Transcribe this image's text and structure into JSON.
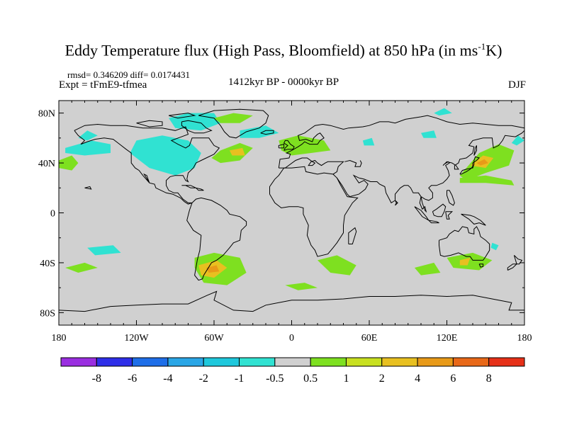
{
  "title_main": "Eddy Temperature flux (High Pass, Bloomfield) at 850 hPa (in ms",
  "title_sup": "-1",
  "title_end": "K)",
  "stats": "rmsd= 0.346209 diff= 0.0174431",
  "experiment": "Expt = tFmE9-tfmea",
  "period": "1412kyr BP - 0000kyr BP",
  "season": "DJF",
  "map": {
    "lat_labels": [
      "80N",
      "40N",
      "0",
      "40S",
      "80S"
    ],
    "lat_values": [
      80,
      40,
      0,
      -40,
      -80
    ],
    "lon_labels": [
      "180",
      "120W",
      "60W",
      "0",
      "60E",
      "120E",
      "180"
    ],
    "lon_values": [
      -180,
      -120,
      -60,
      0,
      60,
      120,
      180
    ],
    "lat_range": [
      -90,
      90
    ],
    "lon_range": [
      -180,
      180
    ],
    "ocean_color": "#d0d0d0",
    "coast_color": "#000000"
  },
  "colorbar": {
    "labels": [
      "-8",
      "-6",
      "-4",
      "-2",
      "-1",
      "-0.5",
      "0.5",
      "1",
      "2",
      "4",
      "6",
      "8"
    ],
    "colors": [
      "#9a2ee0",
      "#2e2ee8",
      "#1e6ee8",
      "#2aa6e6",
      "#1ec8dc",
      "#30e2d2",
      "#d0d0d0",
      "#7ee020",
      "#c8e020",
      "#e8c020",
      "#e89a18",
      "#e86818",
      "#e63018"
    ]
  },
  "anomalies": [
    {
      "color": "#30e2d2",
      "pts": [
        [
          -175,
          52
        ],
        [
          -155,
          58
        ],
        [
          -140,
          55
        ],
        [
          -140,
          48
        ],
        [
          -160,
          46
        ],
        [
          -175,
          48
        ]
      ]
    },
    {
      "color": "#30e2d2",
      "pts": [
        [
          -120,
          58
        ],
        [
          -100,
          62
        ],
        [
          -80,
          58
        ],
        [
          -70,
          48
        ],
        [
          -75,
          36
        ],
        [
          -90,
          30
        ],
        [
          -110,
          36
        ],
        [
          -125,
          48
        ]
      ]
    },
    {
      "color": "#30e2d2",
      "pts": [
        [
          -95,
          76
        ],
        [
          -80,
          80
        ],
        [
          -60,
          80
        ],
        [
          -55,
          72
        ],
        [
          -70,
          66
        ],
        [
          -90,
          68
        ]
      ]
    },
    {
      "color": "#30e2d2",
      "pts": [
        [
          -40,
          66
        ],
        [
          -20,
          70
        ],
        [
          -10,
          64
        ],
        [
          -25,
          60
        ],
        [
          -40,
          60
        ]
      ]
    },
    {
      "color": "#30e2d2",
      "pts": [
        [
          -158,
          -28
        ],
        [
          -138,
          -26
        ],
        [
          -132,
          -32
        ],
        [
          -152,
          -34
        ]
      ]
    },
    {
      "color": "#30e2d2",
      "pts": [
        [
          155,
          -24
        ],
        [
          160,
          -26
        ],
        [
          158,
          -30
        ],
        [
          154,
          -28
        ]
      ]
    },
    {
      "color": "#30e2d2",
      "pts": [
        [
          100,
          64
        ],
        [
          110,
          66
        ],
        [
          112,
          60
        ],
        [
          102,
          60
        ]
      ]
    },
    {
      "color": "#30e2d2",
      "pts": [
        [
          55,
          58
        ],
        [
          62,
          60
        ],
        [
          64,
          54
        ],
        [
          56,
          54
        ]
      ]
    },
    {
      "color": "#30e2d2",
      "pts": [
        [
          110,
          80
        ],
        [
          118,
          84
        ],
        [
          124,
          80
        ],
        [
          114,
          78
        ]
      ]
    },
    {
      "color": "#30e2d2",
      "pts": [
        [
          -165,
          60
        ],
        [
          -158,
          66
        ],
        [
          -150,
          62
        ],
        [
          -158,
          58
        ]
      ]
    },
    {
      "color": "#30e2d2",
      "pts": [
        [
          170,
          56
        ],
        [
          175,
          62
        ],
        [
          180,
          58
        ],
        [
          174,
          54
        ]
      ]
    },
    {
      "color": "#7ee020",
      "pts": [
        [
          -180,
          42
        ],
        [
          -170,
          46
        ],
        [
          -165,
          40
        ],
        [
          -170,
          34
        ],
        [
          -180,
          36
        ]
      ]
    },
    {
      "color": "#7ee020",
      "pts": [
        [
          -55,
          50
        ],
        [
          -40,
          56
        ],
        [
          -30,
          52
        ],
        [
          -40,
          42
        ],
        [
          -55,
          40
        ],
        [
          -62,
          44
        ]
      ]
    },
    {
      "color": "#7ee020",
      "pts": [
        [
          -10,
          58
        ],
        [
          5,
          62
        ],
        [
          25,
          58
        ],
        [
          30,
          50
        ],
        [
          15,
          48
        ],
        [
          0,
          46
        ],
        [
          -8,
          50
        ]
      ]
    },
    {
      "color": "#7ee020",
      "pts": [
        [
          -60,
          76
        ],
        [
          -45,
          80
        ],
        [
          -30,
          78
        ],
        [
          -40,
          72
        ],
        [
          -55,
          72
        ]
      ]
    },
    {
      "color": "#7ee020",
      "pts": [
        [
          130,
          30
        ],
        [
          145,
          48
        ],
        [
          160,
          55
        ],
        [
          172,
          50
        ],
        [
          168,
          38
        ],
        [
          150,
          32
        ],
        [
          135,
          26
        ]
      ]
    },
    {
      "color": "#7ee020",
      "pts": [
        [
          130,
          28
        ],
        [
          150,
          30
        ],
        [
          170,
          26
        ],
        [
          172,
          22
        ],
        [
          150,
          24
        ],
        [
          130,
          24
        ]
      ]
    },
    {
      "color": "#7ee020",
      "pts": [
        [
          -175,
          -44
        ],
        [
          -160,
          -40
        ],
        0,
        [
          -150,
          -44
        ],
        [
          -165,
          -48
        ]
      ]
    },
    {
      "color": "#7ee020",
      "pts": [
        [
          -75,
          -36
        ],
        [
          -60,
          -32
        ],
        [
          -40,
          -36
        ],
        [
          -35,
          -48
        ],
        [
          -50,
          -58
        ],
        [
          -68,
          -56
        ],
        [
          -75,
          -44
        ]
      ]
    },
    {
      "color": "#7ee020",
      "pts": [
        [
          20,
          -38
        ],
        [
          35,
          -34
        ],
        [
          50,
          -42
        ],
        [
          45,
          -50
        ],
        [
          30,
          -48
        ]
      ]
    },
    {
      "color": "#7ee020",
      "pts": [
        [
          -5,
          -58
        ],
        [
          10,
          -56
        ],
        [
          20,
          -60
        ],
        [
          5,
          -62
        ]
      ]
    },
    {
      "color": "#7ee020",
      "pts": [
        [
          95,
          -44
        ],
        [
          110,
          -40
        ],
        [
          115,
          -48
        ],
        [
          100,
          -50
        ]
      ]
    },
    {
      "color": "#7ee020",
      "pts": [
        [
          120,
          -36
        ],
        [
          140,
          -32
        ],
        [
          155,
          -38
        ],
        [
          145,
          -46
        ],
        [
          125,
          -44
        ]
      ]
    },
    {
      "color": "#e8c020",
      "pts": [
        [
          -72,
          -42
        ],
        [
          -58,
          -38
        ],
        [
          -50,
          -44
        ],
        [
          -60,
          -52
        ],
        [
          -70,
          -50
        ]
      ]
    },
    {
      "color": "#e8c020",
      "pts": [
        [
          138,
          38
        ],
        [
          148,
          46
        ],
        [
          156,
          44
        ],
        [
          150,
          36
        ]
      ]
    },
    {
      "color": "#e8c020",
      "pts": [
        [
          -48,
          50
        ],
        [
          -38,
          52
        ],
        [
          -36,
          46
        ],
        [
          -46,
          46
        ]
      ]
    },
    {
      "color": "#e8c020",
      "pts": [
        [
          130,
          -38
        ],
        [
          138,
          -36
        ],
        [
          136,
          -42
        ],
        [
          130,
          -42
        ]
      ]
    },
    {
      "color": "#e89a18",
      "pts": [
        [
          -66,
          -44
        ],
        [
          -58,
          -42
        ],
        [
          -56,
          -47
        ],
        [
          -64,
          -48
        ]
      ]
    },
    {
      "color": "#e89a18",
      "pts": [
        [
          143,
          40
        ],
        [
          149,
          43
        ],
        [
          152,
          40
        ],
        [
          146,
          38
        ]
      ]
    }
  ]
}
